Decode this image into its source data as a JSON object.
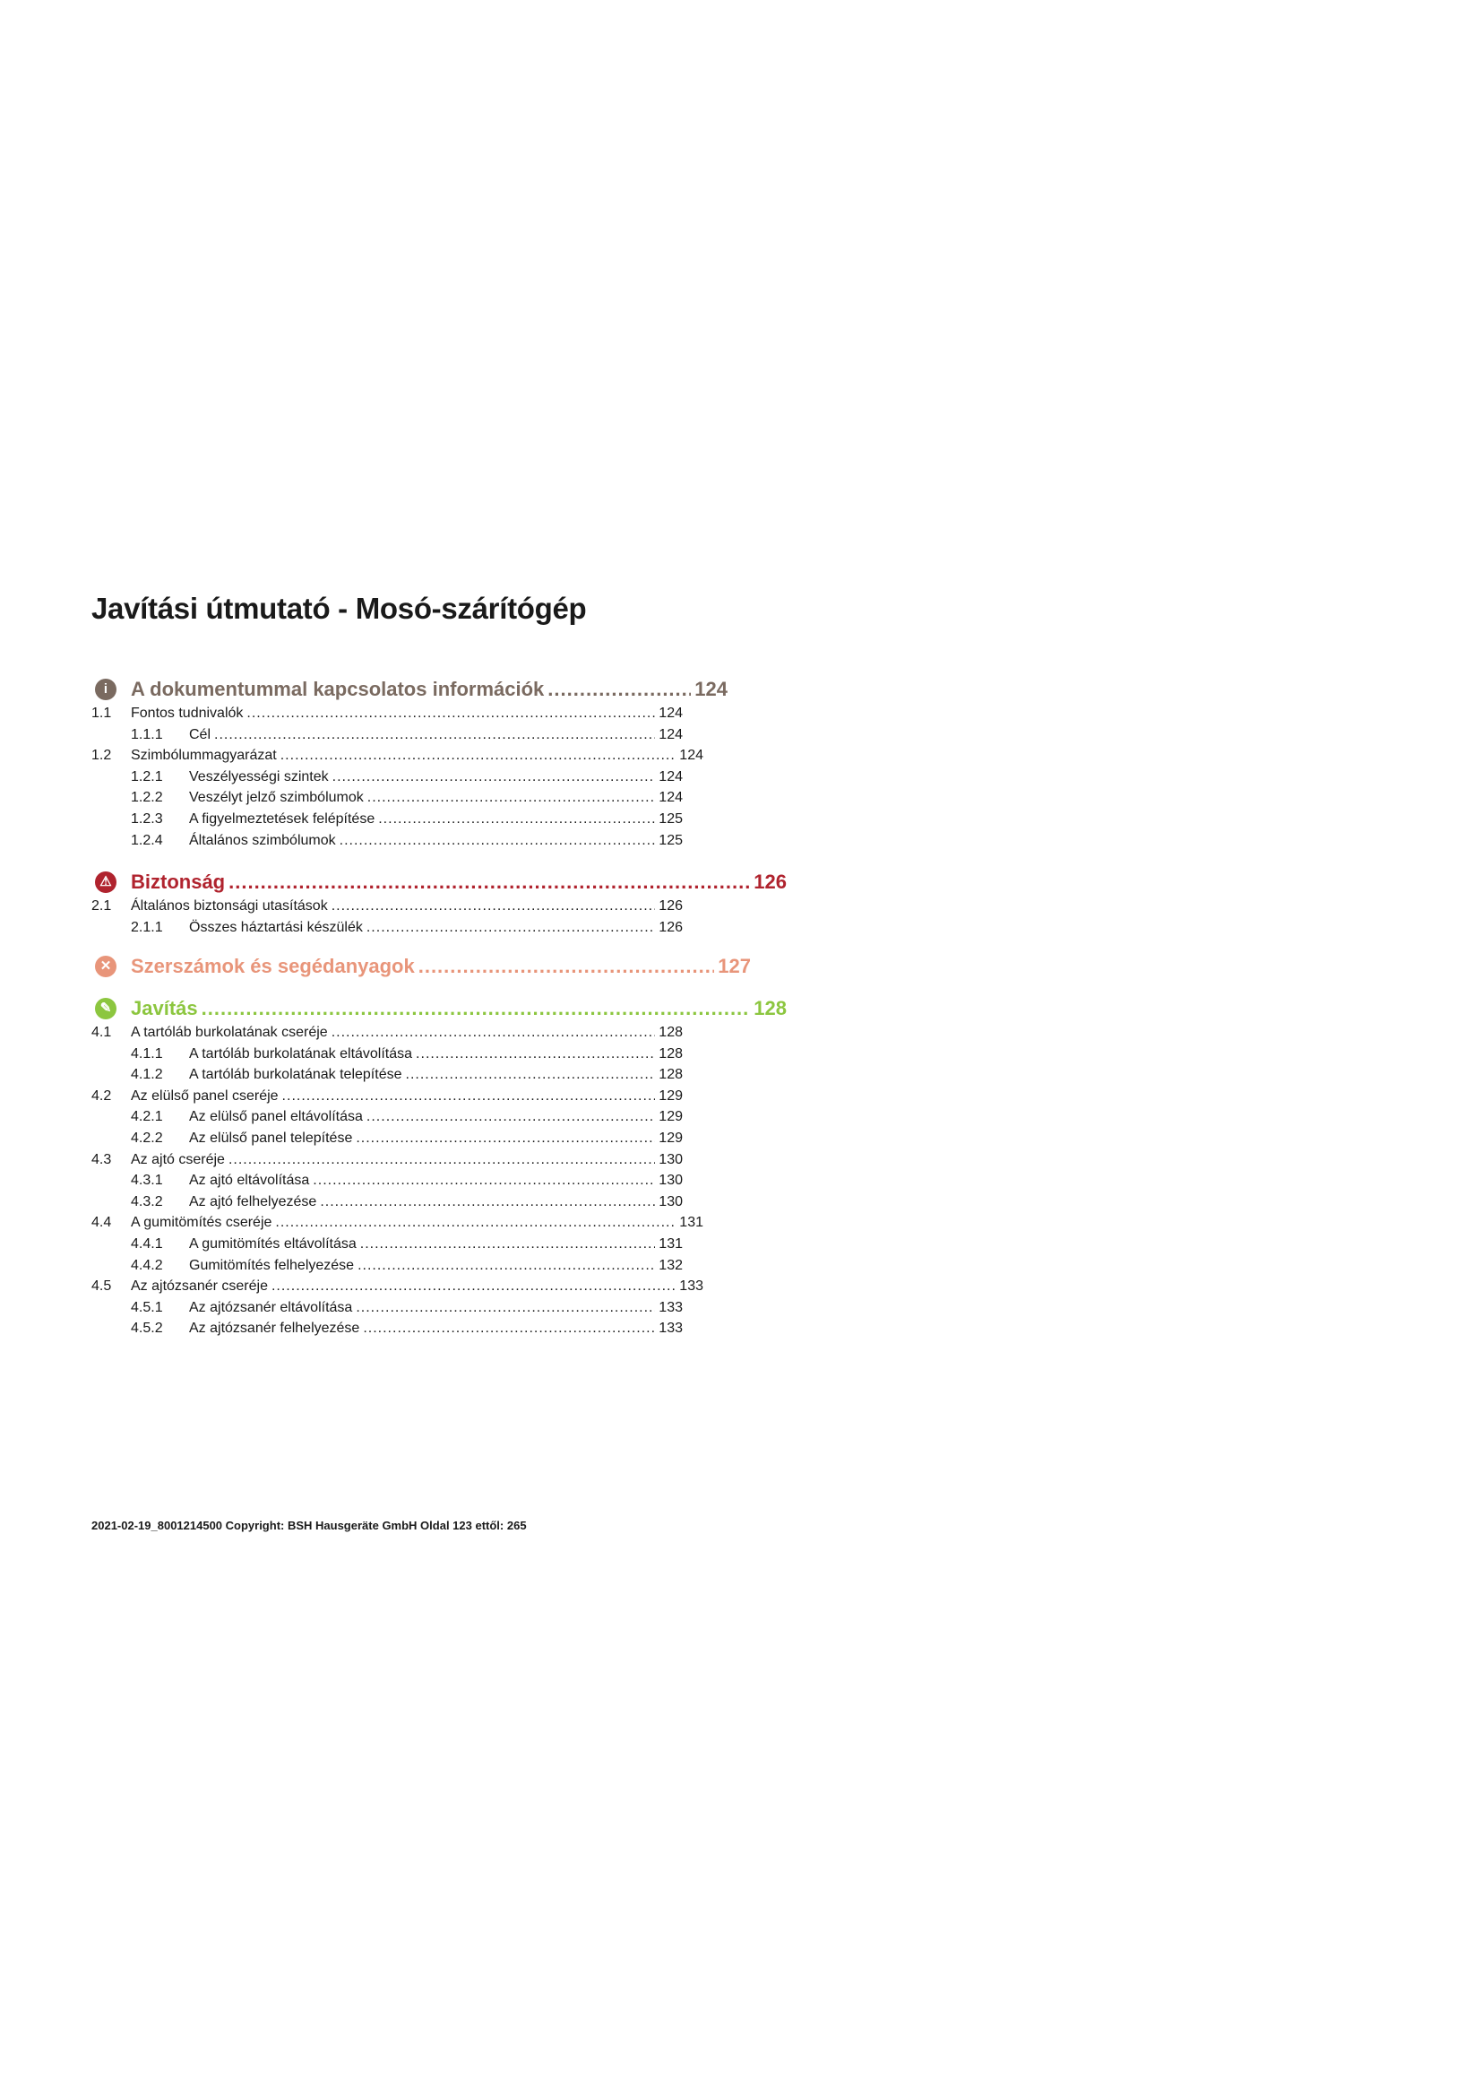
{
  "title": "Javítási útmutató - Mosó-szárítógép",
  "colors": {
    "info": "#7a6a60",
    "safety": "#b0232e",
    "tools": "#e8957a",
    "repair": "#8cc63f"
  },
  "sections": [
    {
      "icon": "info-icon",
      "color": "#7a6a60",
      "title": "A dokumentummal kapcsolatos információk",
      "page": "124",
      "items": [
        {
          "num": "1.1",
          "text": "Fontos tudnivalók",
          "page": "124",
          "level": 1
        },
        {
          "num": "1.1.1",
          "text": "Cél",
          "page": "124",
          "level": 2
        },
        {
          "num": "1.2",
          "text": "Szimbólummagyarázat",
          "page": "124",
          "level": 1
        },
        {
          "num": "1.2.1",
          "text": "Veszélyességi szintek",
          "page": "124",
          "level": 2
        },
        {
          "num": "1.2.2",
          "text": "Veszélyt jelző szimbólumok",
          "page": "124",
          "level": 2
        },
        {
          "num": "1.2.3",
          "text": "A figyelmeztetések felépítése",
          "page": "125",
          "level": 2
        },
        {
          "num": "1.2.4",
          "text": "Általános szimbólumok",
          "page": "125",
          "level": 2
        }
      ]
    },
    {
      "icon": "warning-triangle-icon",
      "color": "#b0232e",
      "title": "Biztonság",
      "page": "126",
      "items": [
        {
          "num": "2.1",
          "text": "Általános biztonsági utasítások",
          "page": "126",
          "level": 1
        },
        {
          "num": "2.1.1",
          "text": "Összes háztartási készülék",
          "page": "126",
          "level": 2
        }
      ]
    },
    {
      "icon": "tools-icon",
      "color": "#e8957a",
      "title": "Szerszámok és segédanyagok",
      "page": "127",
      "items": []
    },
    {
      "icon": "wrench-icon",
      "color": "#8cc63f",
      "title": "Javítás",
      "page": "128",
      "items": [
        {
          "num": "4.1",
          "text": "A tartóláb burkolatának cseréje",
          "page": "128",
          "level": 1
        },
        {
          "num": "4.1.1",
          "text": "A tartóláb burkolatának eltávolítása",
          "page": "128",
          "level": 2
        },
        {
          "num": "4.1.2",
          "text": "A tartóláb burkolatának telepítése",
          "page": "128",
          "level": 2
        },
        {
          "num": "4.2",
          "text": "Az elülső panel cseréje",
          "page": "129",
          "level": 1
        },
        {
          "num": "4.2.1",
          "text": "Az elülső panel eltávolítása",
          "page": "129",
          "level": 2
        },
        {
          "num": "4.2.2",
          "text": "Az elülső panel telepítése",
          "page": "129",
          "level": 2
        },
        {
          "num": "4.3",
          "text": "Az ajtó cseréje",
          "page": "130",
          "level": 1
        },
        {
          "num": "4.3.1",
          "text": "Az ajtó eltávolítása",
          "page": "130",
          "level": 2
        },
        {
          "num": "4.3.2",
          "text": "Az ajtó felhelyezése",
          "page": "130",
          "level": 2
        },
        {
          "num": "4.4",
          "text": "A gumitömítés cseréje",
          "page": "131",
          "level": 1
        },
        {
          "num": "4.4.1",
          "text": "A gumitömítés eltávolítása",
          "page": "131",
          "level": 2
        },
        {
          "num": "4.4.2",
          "text": "Gumitömítés felhelyezése",
          "page": "132",
          "level": 2
        },
        {
          "num": "4.5",
          "text": "Az ajtózsanér cseréje",
          "page": "133",
          "level": 1
        },
        {
          "num": "4.5.1",
          "text": "Az ajtózsanér eltávolítása",
          "page": "133",
          "level": 2
        },
        {
          "num": "4.5.2",
          "text": "Az ajtózsanér felhelyezése",
          "page": "133",
          "level": 2
        }
      ]
    }
  ],
  "footer": "2021-02-19_8001214500 Copyright: BSH Hausgeräte GmbH Oldal 123 ettől: 265"
}
